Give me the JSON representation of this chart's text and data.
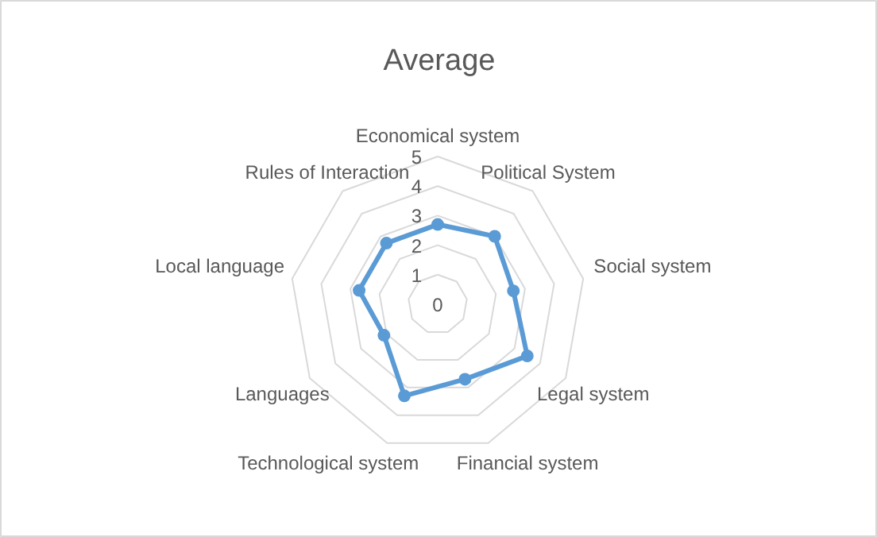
{
  "chart_data": {
    "type": "radar",
    "title": "Average",
    "categories": [
      "Economical system",
      "Political System",
      "Social system",
      "Legal system",
      "Financial system",
      "Technological system",
      "Languages",
      "Local language",
      "Rules of Interaction"
    ],
    "series": [
      {
        "color": "#5b9bd5",
        "values": [
          2.7,
          3.0,
          2.6,
          3.5,
          2.7,
          3.3,
          2.1,
          2.7,
          2.7
        ]
      }
    ],
    "ylim": [
      0,
      5
    ],
    "yticks": [
      0,
      1,
      2,
      3,
      4,
      5
    ],
    "grid": true,
    "marker": "circle",
    "line_style": "solid"
  }
}
